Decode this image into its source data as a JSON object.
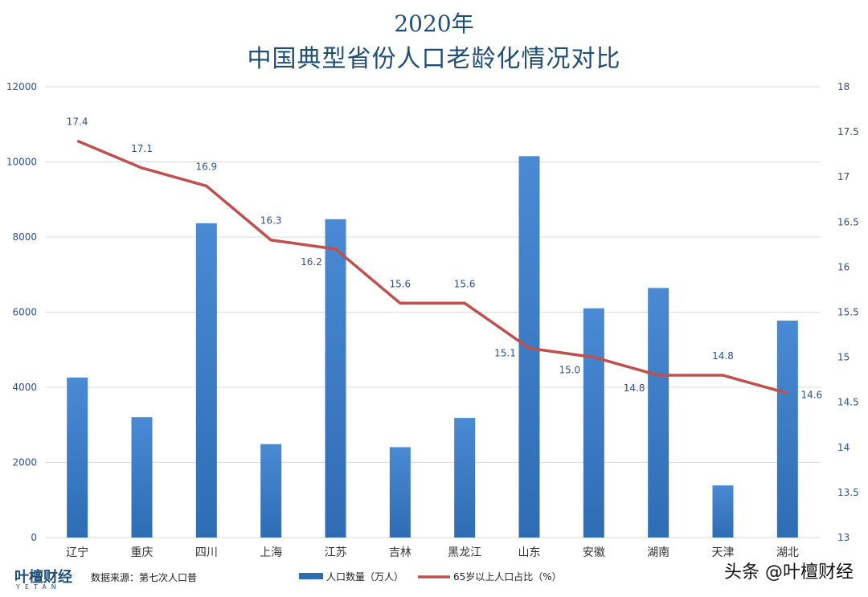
{
  "title": "2020年",
  "subtitle": "中国典型省份人口老龄化情况对比",
  "brand": {
    "name": "叶檀财经",
    "sub": "YETAN"
  },
  "source": "数据来源：第七次人口普",
  "watermark": "头条 @叶檀财经",
  "colors": {
    "bar": "#2e6db4",
    "barTop": "#4a8ad4",
    "line": "#c0504d",
    "axisText": "#2f4f8f",
    "grid": "#d9d9d9"
  },
  "chart_data": {
    "type": "bar",
    "categories": [
      "辽宁",
      "重庆",
      "四川",
      "上海",
      "江苏",
      "吉林",
      "黑龙江",
      "山东",
      "安徽",
      "湖南",
      "天津",
      "湖北"
    ],
    "series": [
      {
        "name": "人口数量（万人）",
        "type": "bar",
        "axis": "left",
        "values": [
          4259,
          3205,
          8367,
          2487,
          8475,
          2407,
          3185,
          10153,
          6103,
          6644,
          1387,
          5775
        ]
      },
      {
        "name": "65岁以上人口占比（%）",
        "type": "line",
        "axis": "right",
        "values": [
          17.4,
          17.1,
          16.9,
          16.3,
          16.2,
          15.6,
          15.6,
          15.1,
          15.0,
          14.8,
          14.8,
          14.6
        ],
        "labels": [
          "17.4",
          "17.1",
          "16.9",
          "16.3",
          "16.2",
          "15.6",
          "15.6",
          "15.1",
          "15.0",
          "14.8",
          "14.8",
          "14.6"
        ]
      }
    ],
    "y_left": {
      "min": 0,
      "max": 12000,
      "ticks": [
        "0",
        "2000",
        "4000",
        "6000",
        "8000",
        "10000",
        "12000"
      ]
    },
    "y_right": {
      "min": 13,
      "max": 18,
      "ticks": [
        "13",
        "13.5",
        "14",
        "14.5",
        "15",
        "15.5",
        "16",
        "16.5",
        "17",
        "17.5",
        "18"
      ]
    },
    "grid": true,
    "legend_position": "bottom"
  }
}
